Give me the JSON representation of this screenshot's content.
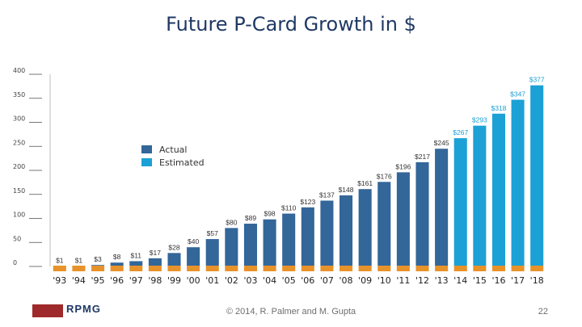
{
  "slide": {
    "title": "Future P-Card Growth in $",
    "logo_text": "RPMG",
    "copyright": "© 2014, R. Palmer and M. Gupta",
    "page_number": "22"
  },
  "chart_data": {
    "type": "bar",
    "title": "",
    "xlabel": "",
    "ylabel": "",
    "ylim": [
      0,
      400
    ],
    "yticks": [
      0,
      50,
      100,
      150,
      200,
      250,
      300,
      350,
      400
    ],
    "grid": false,
    "legend_position": "upper-left",
    "categories": [
      "'93",
      "'94",
      "'95",
      "'96",
      "'97",
      "'98",
      "'99",
      "'00",
      "'01",
      "'02",
      "'03",
      "'04",
      "'05",
      "'06",
      "'07",
      "'08",
      "'09",
      "'10",
      "'11",
      "'12",
      "'13",
      "'14",
      "'15",
      "'16",
      "'17",
      "'18"
    ],
    "series": [
      {
        "name": "Actual",
        "color": "#336699",
        "values": [
          1,
          1,
          3,
          8,
          11,
          17,
          28,
          40,
          57,
          80,
          89,
          98,
          110,
          123,
          137,
          148,
          161,
          176,
          196,
          217,
          245,
          null,
          null,
          null,
          null,
          null
        ]
      },
      {
        "name": "Estimated",
        "color": "#1ba1d6",
        "values": [
          null,
          null,
          null,
          null,
          null,
          null,
          null,
          null,
          null,
          null,
          null,
          null,
          null,
          null,
          null,
          null,
          null,
          null,
          null,
          null,
          null,
          267,
          293,
          318,
          347,
          377
        ]
      }
    ],
    "data_labels": [
      "$1",
      "$1",
      "$3",
      "$8",
      "$11",
      "$17",
      "$28",
      "$40",
      "$57",
      "$80",
      "$89",
      "$98",
      "$110",
      "$123",
      "$137",
      "$148",
      "$161",
      "$176",
      "$196",
      "$217",
      "$245",
      "$267",
      "$293",
      "$318",
      "$347",
      "$377"
    ],
    "baseline_color": "#e8922a"
  }
}
